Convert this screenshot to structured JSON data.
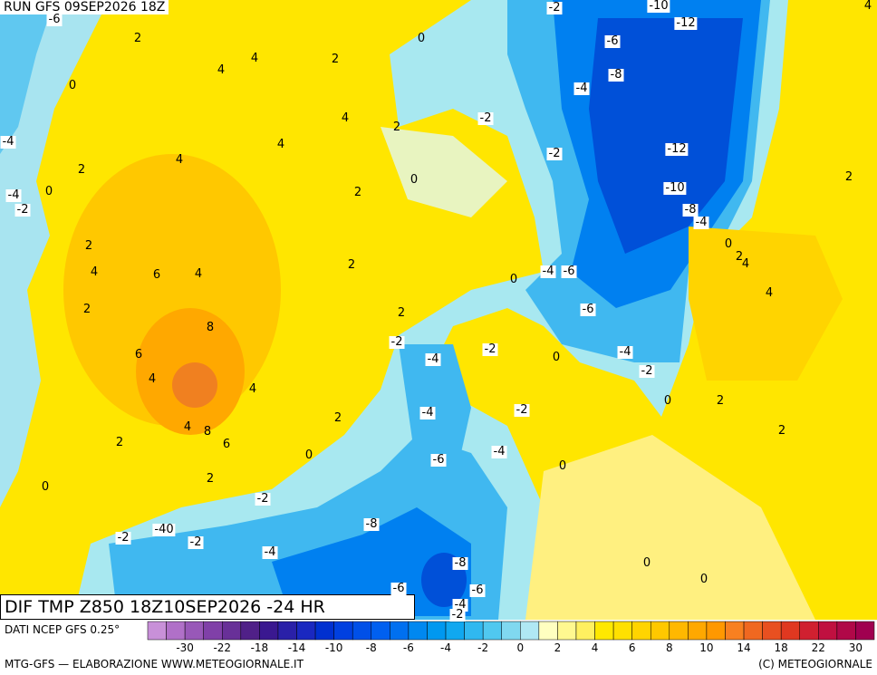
{
  "header": {
    "run": "RUN GFS 09SEP2026 18Z",
    "title": "DIF TMP Z850 18Z10SEP2026 -24 HR"
  },
  "map": {
    "labels": [
      "-6",
      "2",
      "0",
      "-2",
      "-10",
      "-12",
      "4",
      "-6",
      "4",
      "4",
      "2",
      "-8",
      "0",
      "-4",
      "4",
      "-2",
      "2",
      "-4",
      "4",
      "-2",
      "-12",
      "4",
      "2",
      "0",
      "2",
      "-4",
      "0",
      "2",
      "-10",
      "-2",
      "-8",
      "-4",
      "2",
      "0",
      "2",
      "4",
      "4",
      "6",
      "4",
      "2",
      "-4",
      "-6",
      "0",
      "2",
      "4",
      "-6",
      "2",
      "8",
      "-2",
      "6",
      "-2",
      "-4",
      "0",
      "4",
      "-4",
      "-2",
      "4",
      "0",
      "2",
      "-4",
      "-2",
      "2",
      "4",
      "8",
      "6",
      "2",
      "2",
      "-4",
      "0",
      "-6",
      "0",
      "2",
      "0",
      "-2",
      "-8",
      "-40",
      "-2",
      "-2",
      "-4",
      "-8",
      "0",
      "-6",
      "0",
      "-6",
      "-4",
      "-2"
    ]
  },
  "legend": {
    "source": "DATI NCEP GFS 0.25°",
    "ticks": [
      "-30",
      "-22",
      "-18",
      "-14",
      "-10",
      "-8",
      "-6",
      "-4",
      "-2",
      "0",
      "2",
      "4",
      "6",
      "8",
      "10",
      "14",
      "18",
      "22",
      "30"
    ]
  },
  "footer": {
    "left": "MTG-GFS — ELABORAZIONE WWW.METEOGIORNALE.IT",
    "right": "(C) METEOGIORNALE"
  }
}
